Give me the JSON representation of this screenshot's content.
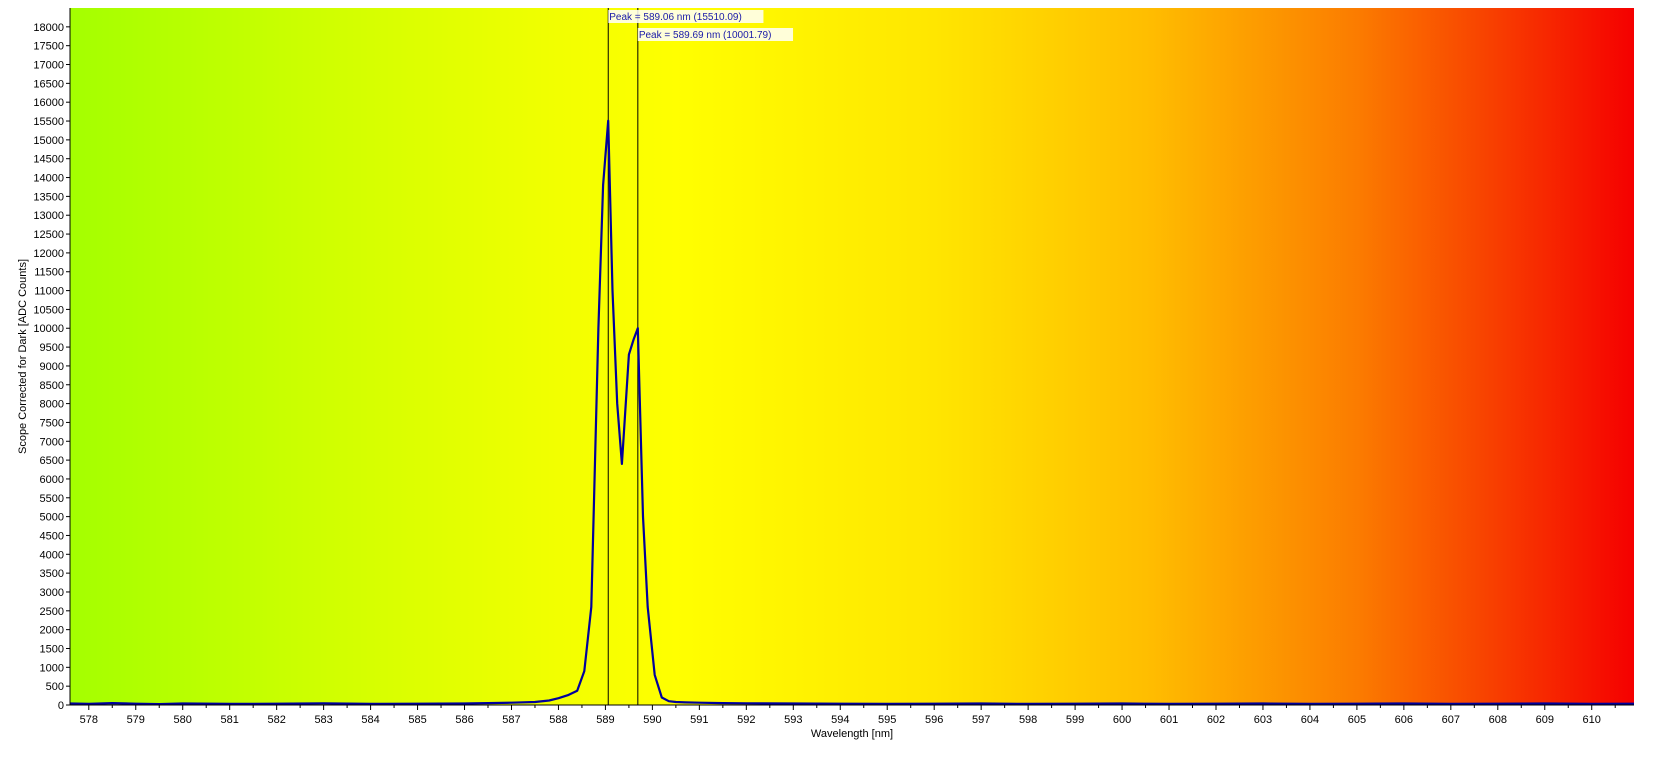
{
  "chart_data": {
    "type": "line",
    "xlabel": "Wavelength [nm]",
    "ylabel": "Scope Corrected for Dark [ADC Counts]",
    "xlim": [
      577.6,
      610.9
    ],
    "ylim": [
      0,
      18500
    ],
    "x_ticks": [
      578,
      579,
      580,
      581,
      582,
      583,
      584,
      585,
      586,
      587,
      588,
      589,
      590,
      591,
      592,
      593,
      594,
      595,
      596,
      597,
      598,
      599,
      600,
      601,
      602,
      603,
      604,
      605,
      606,
      607,
      608,
      609,
      610
    ],
    "y_ticks": [
      0,
      500,
      1000,
      1500,
      2000,
      2500,
      3000,
      3500,
      4000,
      4500,
      5000,
      5500,
      6000,
      6500,
      7000,
      7500,
      8000,
      8500,
      9000,
      9500,
      10000,
      10500,
      11000,
      11500,
      12000,
      12500,
      13000,
      13500,
      14000,
      14500,
      15000,
      15500,
      16000,
      16500,
      17000,
      17500,
      18000
    ],
    "grid": false,
    "legend": "none",
    "background": "spectral gradient (green to yellow to red)",
    "background_stops": [
      {
        "x": 577.6,
        "color": "#a4ff00"
      },
      {
        "x": 583.0,
        "color": "#cfff00"
      },
      {
        "x": 588.0,
        "color": "#f2ff00"
      },
      {
        "x": 590.5,
        "color": "#ffff00"
      },
      {
        "x": 596.0,
        "color": "#ffe600"
      },
      {
        "x": 600.5,
        "color": "#ffbe00"
      },
      {
        "x": 605.0,
        "color": "#fb7c00"
      },
      {
        "x": 610.9,
        "color": "#f50000"
      }
    ],
    "series": [
      {
        "color": "#00009c",
        "x": [
          577.6,
          578.0,
          578.5,
          579.0,
          579.5,
          580.0,
          581.0,
          582.0,
          583.0,
          584.0,
          585.0,
          586.0,
          586.5,
          587.0,
          587.5,
          587.8,
          588.0,
          588.2,
          588.4,
          588.55,
          588.7,
          588.85,
          588.95,
          589.06,
          589.15,
          589.25,
          589.35,
          589.5,
          589.6,
          589.69,
          589.8,
          589.9,
          590.05,
          590.2,
          590.35,
          590.5,
          590.7,
          591.0,
          591.5,
          592.0,
          593.0,
          594.0,
          595.0,
          596.0,
          597.0,
          598.0,
          599.0,
          600.0,
          601.0,
          602.0,
          603.0,
          604.0,
          605.0,
          606.0,
          607.0,
          608.0,
          609.0,
          610.0,
          610.9
        ],
        "y": [
          40,
          30,
          50,
          35,
          25,
          40,
          30,
          35,
          45,
          30,
          35,
          40,
          50,
          60,
          80,
          120,
          180,
          260,
          380,
          900,
          2600,
          10000,
          13800,
          15510,
          11000,
          8000,
          6400,
          9300,
          9700,
          10002,
          5000,
          2600,
          800,
          200,
          100,
          80,
          70,
          60,
          50,
          45,
          40,
          35,
          30,
          35,
          40,
          30,
          35,
          40,
          30,
          35,
          40,
          30,
          35,
          40,
          30,
          35,
          40,
          30,
          35
        ]
      }
    ],
    "annotations": [
      {
        "x": 589.06,
        "text": "Peak = 589.06 nm (15510.09)"
      },
      {
        "x": 589.69,
        "text": "Peak = 589.69 nm (10001.79)"
      }
    ]
  }
}
